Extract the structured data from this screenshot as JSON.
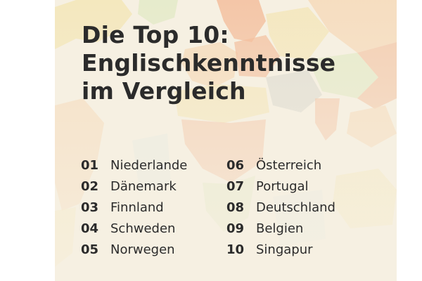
{
  "title_lines": [
    "Die Top 10:",
    "Englischkenntnisse",
    "im Vergleich"
  ],
  "ranking": [
    {
      "rank": "01",
      "country": "Niederlande"
    },
    {
      "rank": "02",
      "country": "Dänemark"
    },
    {
      "rank": "03",
      "country": "Finnland"
    },
    {
      "rank": "04",
      "country": "Schweden"
    },
    {
      "rank": "05",
      "country": "Norwegen"
    },
    {
      "rank": "06",
      "country": "Österreich"
    },
    {
      "rank": "07",
      "country": "Portugal"
    },
    {
      "rank": "08",
      "country": "Deutschland"
    },
    {
      "rank": "09",
      "country": "Belgien"
    },
    {
      "rank": "10",
      "country": "Singapur"
    }
  ],
  "colors": {
    "background": "#f6f0e2",
    "text": "#2b2b2b",
    "map_orange": "#f2a57a",
    "map_peach": "#f5cfa6",
    "map_yellow": "#f3e2a6",
    "map_green": "#d9e6b8",
    "map_gray": "#c9c9c3",
    "map_blue": "#cfe3e6"
  }
}
